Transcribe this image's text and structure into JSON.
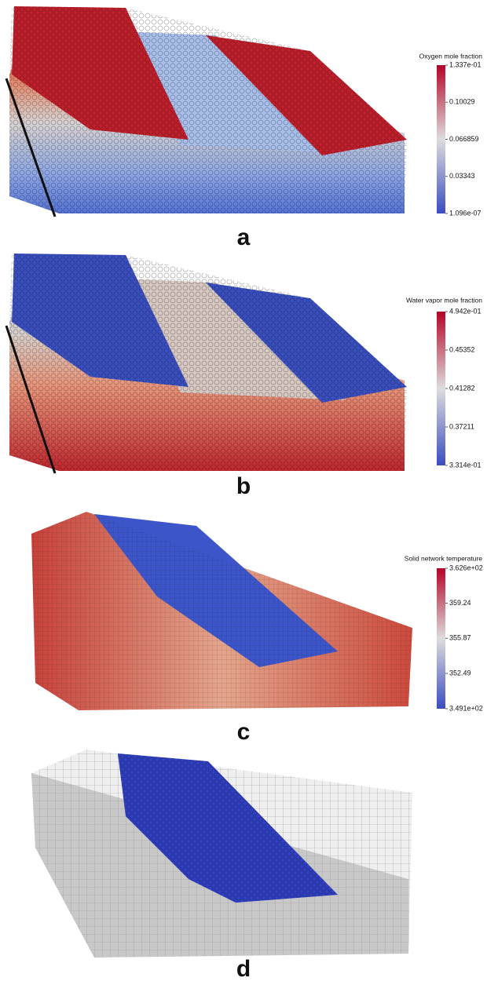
{
  "panels": [
    {
      "label": "a",
      "colorbar": {
        "title": "Oxygen mole fraction",
        "ticks": [
          {
            "value": 1.096e-07,
            "label": "1.096e-07"
          },
          0.03343,
          0.066859,
          0.10029,
          {
            "value": 0.1337,
            "label": "1.337e-01"
          }
        ]
      }
    },
    {
      "label": "b",
      "colorbar": {
        "title": "Water vapor mole fraction",
        "ticks": [
          {
            "value": 0.3314,
            "label": "3.314e-01"
          },
          0.37211,
          0.41282,
          0.45352,
          {
            "value": 0.4942,
            "label": "4.942e-01"
          }
        ]
      }
    },
    {
      "label": "c",
      "colorbar": {
        "title": "Solid network temperature",
        "ticks": [
          {
            "value": 349.1,
            "label": "3.491e+02"
          },
          352.49,
          355.87,
          359.24,
          {
            "value": 362.6,
            "label": "3.626e+02"
          }
        ]
      }
    },
    {
      "label": "d"
    }
  ]
}
